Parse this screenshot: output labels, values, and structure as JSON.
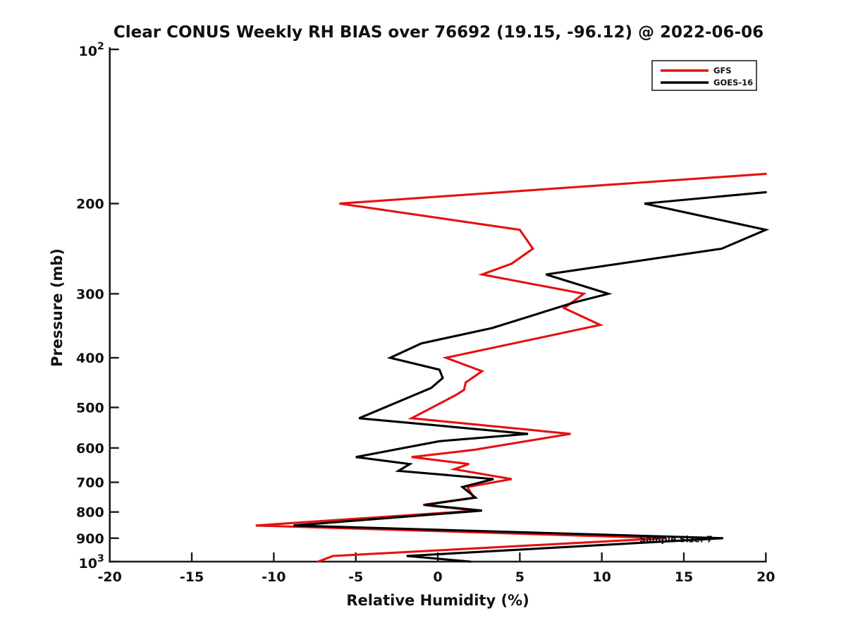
{
  "chart_data": {
    "type": "line",
    "title": "Clear CONUS Weekly RH BIAS over 76692 (19.15, -96.12) @ 2022-06-06",
    "xlabel": "Relative Humidity (%)",
    "ylabel": "Pressure (mb)",
    "xlim": [
      -20,
      20
    ],
    "xticks": [
      -20,
      -15,
      -10,
      -5,
      0,
      5,
      10,
      15,
      20
    ],
    "xtick_labels": [
      "-20",
      "-15",
      "-10",
      "-5",
      "0",
      "5",
      "10",
      "15",
      "20"
    ],
    "yscale": "log",
    "ylim": [
      100,
      1000
    ],
    "yticks": [
      100,
      200,
      300,
      400,
      500,
      600,
      700,
      800,
      900,
      1000
    ],
    "ytick_labels": [
      "10²",
      "200",
      "300",
      "400",
      "500",
      "600",
      "700",
      "800",
      "900",
      "10³"
    ],
    "grid": false,
    "legend": {
      "position": "top-right",
      "entries": [
        {
          "label": "GFS",
          "color": "#e51111"
        },
        {
          "label": "GOES-16",
          "color": "#000000"
        }
      ]
    },
    "annotation": {
      "text": "Sample Size: 7",
      "x": 12.3,
      "pressure": 902,
      "color": "#cc0000"
    },
    "series": [
      {
        "name": "GFS",
        "color": "#e51111",
        "points_format": "[pressure_mb, rh_bias_percent]",
        "points": [
          [
            175,
            20.0
          ],
          [
            200,
            -6.0
          ],
          [
            225,
            5.0
          ],
          [
            245,
            5.8
          ],
          [
            262,
            4.5
          ],
          [
            275,
            2.7
          ],
          [
            300,
            8.9
          ],
          [
            320,
            7.7
          ],
          [
            345,
            9.9
          ],
          [
            400,
            0.5
          ],
          [
            425,
            2.7
          ],
          [
            447,
            1.7
          ],
          [
            462,
            1.6
          ],
          [
            473,
            1.1
          ],
          [
            525,
            -1.6
          ],
          [
            563,
            8.1
          ],
          [
            605,
            2.2
          ],
          [
            625,
            -1.6
          ],
          [
            645,
            1.9
          ],
          [
            660,
            1.0
          ],
          [
            690,
            4.5
          ],
          [
            715,
            1.8
          ],
          [
            750,
            2.2
          ],
          [
            775,
            -0.9
          ],
          [
            795,
            2.4
          ],
          [
            850,
            -11.1
          ],
          [
            900,
            13.9
          ],
          [
            975,
            -6.4
          ],
          [
            1000,
            -7.3
          ]
        ]
      },
      {
        "name": "GOES-16",
        "color": "#000000",
        "points_format": "[pressure_mb, rh_bias_percent]",
        "points": [
          [
            190,
            20.0
          ],
          [
            200,
            12.6
          ],
          [
            225,
            20.0
          ],
          [
            245,
            17.3
          ],
          [
            275,
            6.6
          ],
          [
            300,
            10.4
          ],
          [
            312,
            8.3
          ],
          [
            350,
            3.3
          ],
          [
            375,
            -1.0
          ],
          [
            400,
            -2.9
          ],
          [
            422,
            0.1
          ],
          [
            438,
            0.3
          ],
          [
            458,
            -0.4
          ],
          [
            525,
            -4.8
          ],
          [
            563,
            5.5
          ],
          [
            582,
            0.1
          ],
          [
            625,
            -5.0
          ],
          [
            645,
            -1.7
          ],
          [
            665,
            -2.4
          ],
          [
            690,
            3.4
          ],
          [
            715,
            1.5
          ],
          [
            750,
            2.3
          ],
          [
            775,
            -0.8
          ],
          [
            795,
            2.7
          ],
          [
            850,
            -8.8
          ],
          [
            900,
            17.4
          ],
          [
            975,
            -1.9
          ],
          [
            1000,
            2.0
          ]
        ]
      }
    ]
  }
}
